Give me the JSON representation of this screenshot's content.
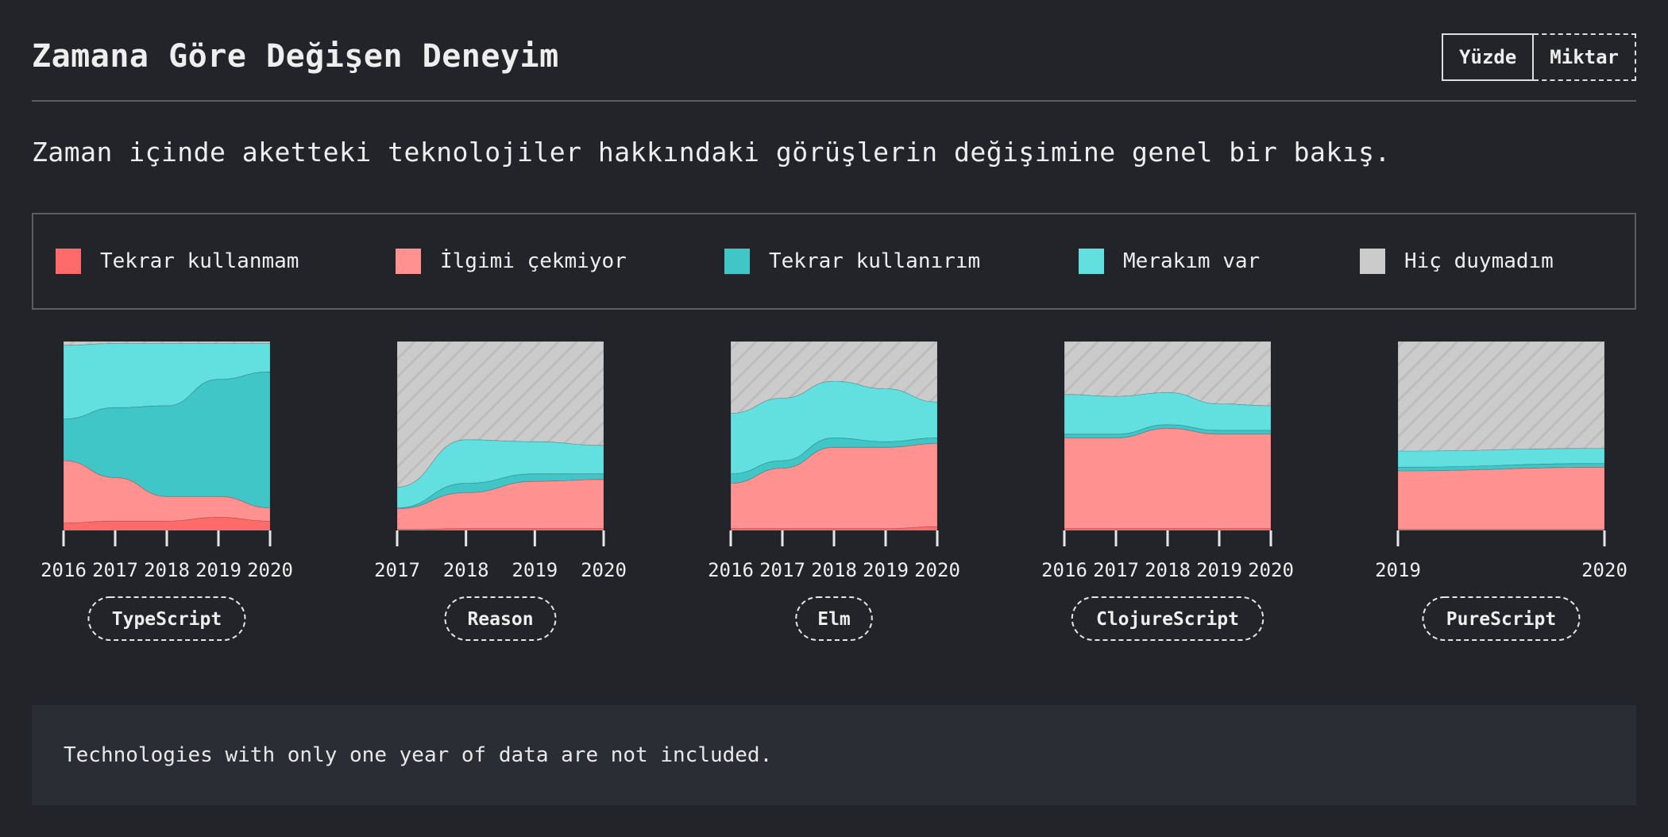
{
  "title": "Zamana Göre Değişen Deneyim",
  "subtitle": "Zaman içinde aketteki teknolojiler hakkındaki görüşlerin değişimine genel bir bakış.",
  "toggle": {
    "percent_label": "Yüzde",
    "amount_label": "Miktar",
    "selected": "percent"
  },
  "legend": [
    {
      "label": "Tekrar kullanmam",
      "color": "#ff6b6b"
    },
    {
      "label": "İlgimi çekmiyor",
      "color": "#ff9191"
    },
    {
      "label": "Tekrar kullanırım",
      "color": "#40c6c7"
    },
    {
      "label": "Merakım var",
      "color": "#62e0e0"
    },
    {
      "label": "Hiç duymadım",
      "color": "#cbcbcb"
    }
  ],
  "note": "Technologies with only one year of data are not included.",
  "chart_data": [
    {
      "type": "area",
      "title": "TypeScript",
      "x": [
        "2016",
        "2017",
        "2018",
        "2019",
        "2020"
      ],
      "stacked": "percent",
      "series": [
        {
          "name": "Tekrar kullanmam",
          "values": [
            4,
            5,
            5,
            7,
            5
          ]
        },
        {
          "name": "İlgimi çekmiyor",
          "values": [
            33,
            23,
            13,
            11,
            7
          ]
        },
        {
          "name": "Tekrar kullanırım",
          "values": [
            22,
            37,
            48,
            62,
            72
          ]
        },
        {
          "name": "Merakım var",
          "values": [
            39,
            34,
            33,
            19,
            15
          ]
        },
        {
          "name": "Hiç duymadım",
          "values": [
            2,
            1,
            1,
            1,
            1
          ]
        }
      ]
    },
    {
      "type": "area",
      "title": "Reason",
      "x": [
        "2017",
        "2018",
        "2019",
        "2020"
      ],
      "stacked": "percent",
      "series": [
        {
          "name": "Tekrar kullanmam",
          "values": [
            0.5,
            1,
            1,
            1
          ]
        },
        {
          "name": "İlgimi çekmiyor",
          "values": [
            11,
            19,
            25,
            26
          ]
        },
        {
          "name": "Tekrar kullanırım",
          "values": [
            0.5,
            5,
            4,
            3
          ]
        },
        {
          "name": "Merakım var",
          "values": [
            11,
            23,
            17,
            15
          ]
        },
        {
          "name": "Hiç duymadım",
          "values": [
            77,
            52,
            53,
            55
          ]
        }
      ]
    },
    {
      "type": "area",
      "title": "Elm",
      "x": [
        "2016",
        "2017",
        "2018",
        "2019",
        "2020"
      ],
      "stacked": "percent",
      "series": [
        {
          "name": "Tekrar kullanmam",
          "values": [
            1,
            1,
            1,
            1,
            2
          ]
        },
        {
          "name": "İlgimi çekmiyor",
          "values": [
            24,
            32,
            43,
            43,
            44
          ]
        },
        {
          "name": "Tekrar kullanırım",
          "values": [
            5,
            4,
            5,
            3,
            3
          ]
        },
        {
          "name": "Merakım var",
          "values": [
            32,
            33,
            30,
            28,
            19
          ]
        },
        {
          "name": "Hiç duymadım",
          "values": [
            38,
            30,
            21,
            25,
            32
          ]
        }
      ]
    },
    {
      "type": "area",
      "title": "ClojureScript",
      "x": [
        "2016",
        "2017",
        "2018",
        "2019",
        "2020"
      ],
      "stacked": "percent",
      "series": [
        {
          "name": "Tekrar kullanmam",
          "values": [
            1,
            1,
            1,
            1,
            1
          ]
        },
        {
          "name": "İlgimi çekmiyor",
          "values": [
            48,
            48,
            53,
            50,
            50
          ]
        },
        {
          "name": "Tekrar kullanırım",
          "values": [
            2,
            2,
            2,
            2,
            2
          ]
        },
        {
          "name": "Merakım var",
          "values": [
            21,
            20,
            17,
            14,
            13
          ]
        },
        {
          "name": "Hiç duymadım",
          "values": [
            28,
            29,
            27,
            33,
            34
          ]
        }
      ]
    },
    {
      "type": "area",
      "title": "PureScript",
      "x": [
        "2019",
        "2020"
      ],
      "stacked": "percent",
      "series": [
        {
          "name": "Tekrar kullanmam",
          "values": [
            0.5,
            0.5
          ]
        },
        {
          "name": "İlgimi çekmiyor",
          "values": [
            31,
            33
          ]
        },
        {
          "name": "Tekrar kullanırım",
          "values": [
            2,
            2
          ]
        },
        {
          "name": "Merakım var",
          "values": [
            8.5,
            8
          ]
        },
        {
          "name": "Hiç duymadım",
          "values": [
            58,
            56.5
          ]
        }
      ]
    }
  ]
}
